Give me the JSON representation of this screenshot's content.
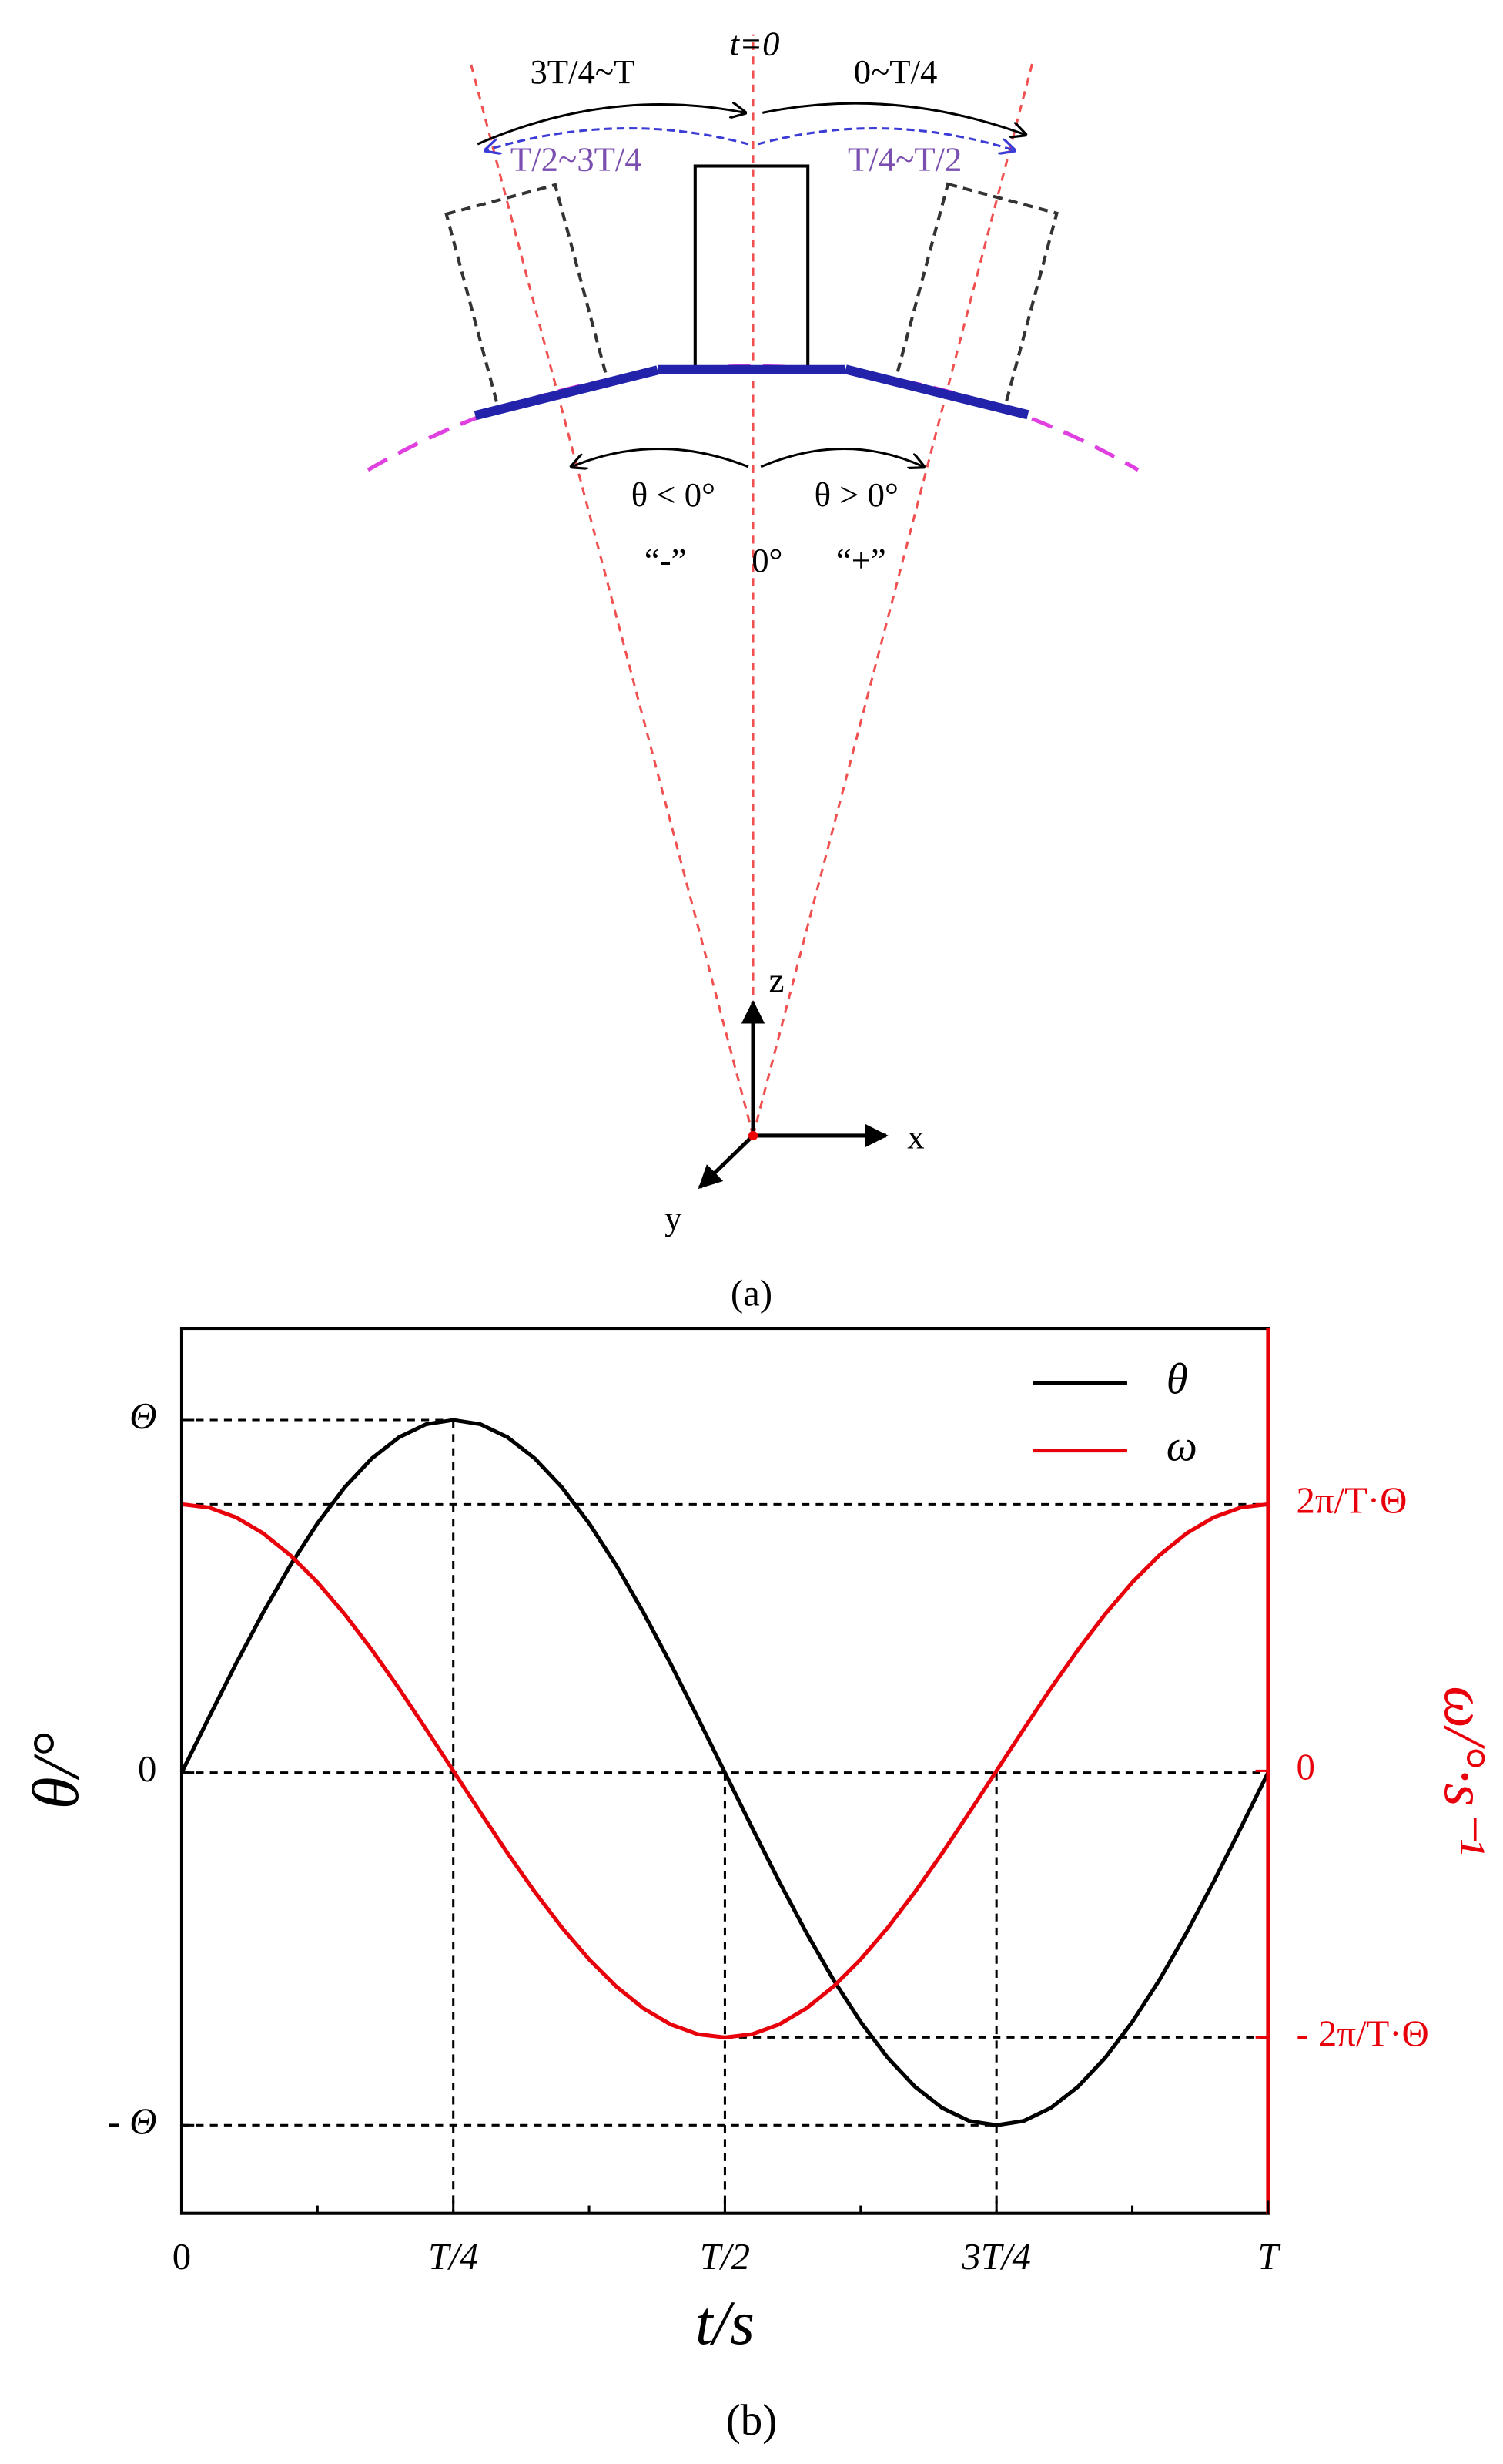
{
  "diagram": {
    "t0": "t=0",
    "arc_left": "3T/4~T",
    "arc_right": "0~T/4",
    "back_left": "T/2~3T/4",
    "back_right": "T/4~T/2",
    "neg_angle": "θ < 0°",
    "pos_angle": "θ > 0°",
    "neg_sign": "“-”",
    "zero": "0°",
    "pos_sign": "“+”",
    "axis_z": "z",
    "axis_x": "x",
    "axis_y": "y",
    "caption": "(a)"
  },
  "chart_data": {
    "type": "line",
    "caption": "(b)",
    "xlabel": "t/s",
    "ylabel": "θ/°",
    "y2label": "ω/°·s⁻¹",
    "legend": "upper right",
    "xlim": [
      0,
      1
    ],
    "xticks": [
      0,
      {
        "value": 0.25,
        "label": "T/4"
      },
      {
        "value": 0.5,
        "label": "T/2"
      },
      {
        "value": 0.75,
        "label": "3T/4"
      },
      {
        "value": 1,
        "label": "T"
      }
    ],
    "xminor": [
      0.125,
      0.375,
      0.625,
      0.875
    ],
    "ylim": [
      -1.25,
      1.26
    ],
    "yticks": [
      {
        "value": 1,
        "label": "Θ"
      },
      0,
      {
        "value": -1,
        "label": "- Θ"
      }
    ],
    "y2lim": [
      -1.66,
      1.66
    ],
    "y2ticks": [
      {
        "value": 1,
        "label": "2π/T·Θ"
      },
      0,
      {
        "value": -1,
        "label": "- 2π/T·Θ"
      }
    ],
    "y2color": "#e8000b",
    "x": [
      0,
      0.025,
      0.05,
      0.075,
      0.1,
      0.125,
      0.15,
      0.175,
      0.2,
      0.225,
      0.25,
      0.275,
      0.3,
      0.325,
      0.35,
      0.375,
      0.4,
      0.425,
      0.45,
      0.475,
      0.5,
      0.525,
      0.55,
      0.575,
      0.6,
      0.625,
      0.65,
      0.675,
      0.7,
      0.725,
      0.75,
      0.775,
      0.8,
      0.825,
      0.85,
      0.875,
      0.9,
      0.925,
      0.95,
      0.975,
      1
    ],
    "series": [
      {
        "name": "θ",
        "color": "#000000",
        "values": [
          0,
          0.156,
          0.309,
          0.454,
          0.588,
          0.707,
          0.809,
          0.891,
          0.951,
          0.988,
          1,
          0.988,
          0.951,
          0.891,
          0.809,
          0.707,
          0.588,
          0.454,
          0.309,
          0.156,
          0,
          -0.156,
          -0.309,
          -0.454,
          -0.588,
          -0.707,
          -0.809,
          -0.891,
          -0.951,
          -0.988,
          -1,
          -0.988,
          -0.951,
          -0.891,
          -0.809,
          -0.707,
          -0.588,
          -0.454,
          -0.309,
          -0.156,
          0
        ]
      },
      {
        "name": "ω",
        "color": "#e8000b",
        "axis": "y2",
        "values": [
          1,
          0.988,
          0.951,
          0.891,
          0.809,
          0.707,
          0.588,
          0.454,
          0.309,
          0.156,
          0,
          -0.156,
          -0.309,
          -0.454,
          -0.588,
          -0.707,
          -0.809,
          -0.891,
          -0.951,
          -0.988,
          -1,
          -0.988,
          -0.951,
          -0.891,
          -0.809,
          -0.707,
          -0.588,
          -0.454,
          -0.309,
          -0.156,
          0,
          0.156,
          0.309,
          0.454,
          0.588,
          0.707,
          0.809,
          0.891,
          0.951,
          0.988,
          1
        ]
      }
    ]
  }
}
